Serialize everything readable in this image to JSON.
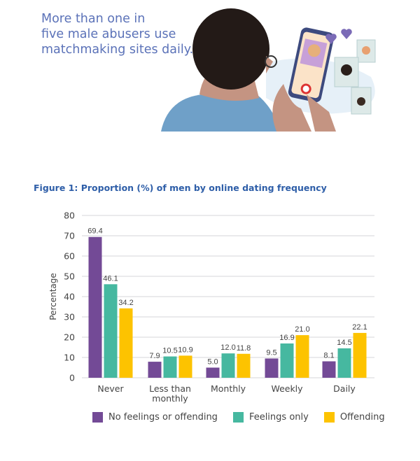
{
  "headline": [
    "More than one in",
    "five male abusers use",
    "matchmaking sites daily."
  ],
  "colors": {
    "headline": "#5b72b8",
    "title": "#2e5ea8",
    "purple": "#734a96",
    "green": "#46b8a0",
    "yellow": "#fdc300"
  },
  "chart_data": {
    "type": "bar",
    "title": "Figure 1: Proportion (%) of men by online dating frequency",
    "xlabel": "",
    "ylabel": "Percentage",
    "ylim": [
      0,
      80
    ],
    "yticks": [
      0,
      10,
      20,
      30,
      40,
      50,
      60,
      70,
      80
    ],
    "grid": true,
    "legend_position": "bottom",
    "categories": [
      [
        "Never"
      ],
      [
        "Less than",
        "monthly"
      ],
      [
        "Monthly"
      ],
      [
        "Weekly"
      ],
      [
        "Daily"
      ]
    ],
    "series": [
      {
        "name": "No feelings or offending",
        "color": "#734a96",
        "values": [
          69.4,
          7.9,
          5.0,
          9.5,
          8.1
        ],
        "labels": [
          "69.4",
          "7.9",
          "5.0",
          "9.5",
          "8.1"
        ]
      },
      {
        "name": "Feelings only",
        "color": "#46b8a0",
        "values": [
          46.1,
          10.5,
          12.0,
          16.9,
          14.5
        ],
        "labels": [
          "46.1",
          "10.5",
          "12.0",
          "16.9",
          "14.5"
        ]
      },
      {
        "name": "Offending",
        "color": "#fdc300",
        "values": [
          34.2,
          10.9,
          11.8,
          21.0,
          22.1
        ],
        "labels": [
          "34.2",
          "10.9",
          "11.8",
          "21.0",
          "22.1"
        ]
      }
    ]
  }
}
